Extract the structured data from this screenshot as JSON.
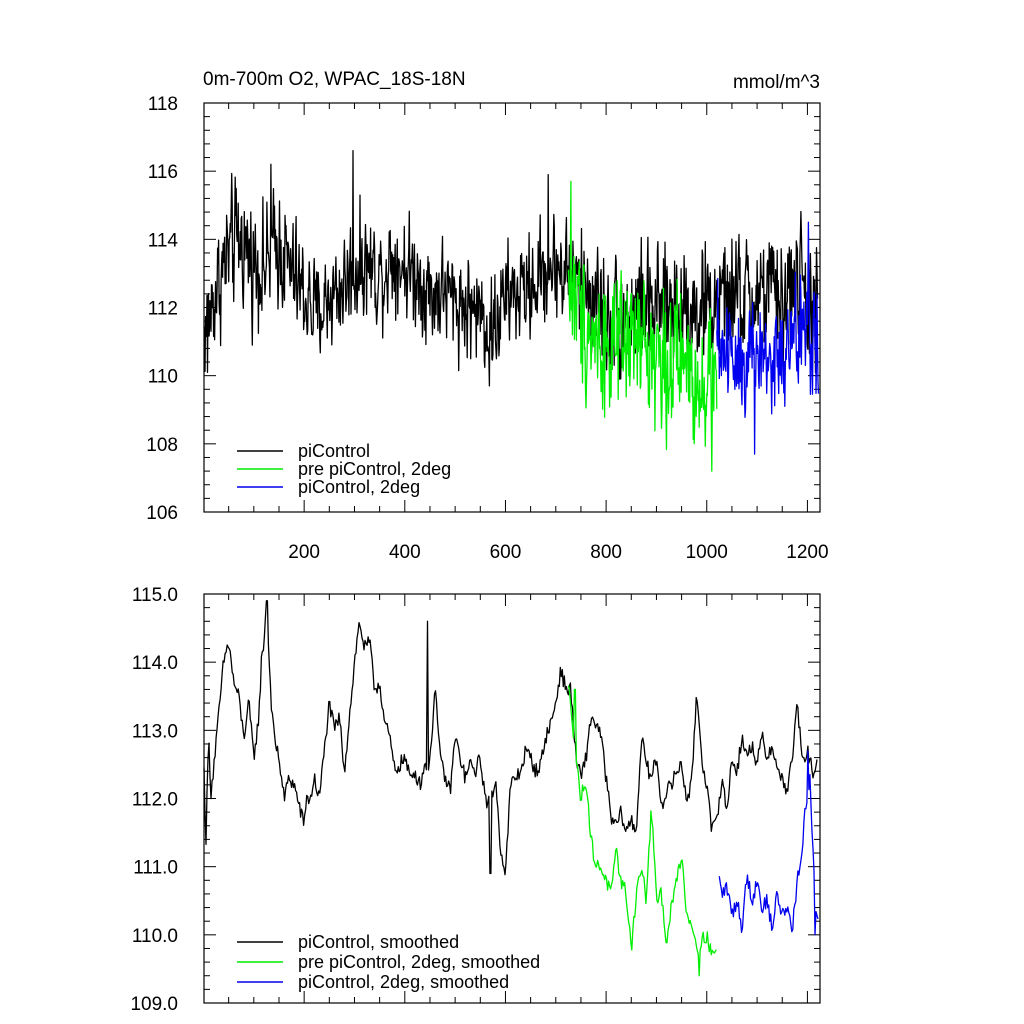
{
  "chart_data": [
    {
      "type": "line",
      "title": "0m-700m O2, WPAC_18S-18N",
      "units": "mmol/m^3",
      "xlim": [
        1,
        1225
      ],
      "ylim": [
        106,
        118
      ],
      "x_ticks": [
        200,
        400,
        600,
        800,
        1000,
        1200
      ],
      "x_tick_labels": [
        "200",
        "400",
        "600",
        "800",
        "1000",
        "1200"
      ],
      "y_ticks": [
        106,
        108,
        110,
        112,
        114,
        116,
        118
      ],
      "y_tick_labels": [
        "106",
        "108",
        "110",
        "112",
        "114",
        "116",
        "118"
      ],
      "legend_position": "bottom-left",
      "series": [
        {
          "name": "piControl",
          "color": "#000000",
          "x": [
            1,
            25,
            50,
            75,
            100,
            125,
            150,
            175,
            200,
            225,
            250,
            275,
            300,
            325,
            350,
            375,
            400,
            425,
            450,
            475,
            500,
            525,
            550,
            575,
            600,
            625,
            650,
            675,
            700,
            725,
            750,
            775,
            800,
            825,
            850,
            875,
            900,
            925,
            950,
            975,
            1000,
            1025,
            1050,
            1075,
            1100,
            1125,
            1150,
            1175,
            1200,
            1220
          ],
          "y": [
            111.2,
            112.5,
            113.6,
            114.0,
            113.3,
            113.2,
            113.9,
            113.0,
            112.4,
            111.8,
            112.3,
            112.6,
            113.1,
            113.3,
            112.9,
            113.5,
            113.2,
            112.9,
            112.4,
            112.5,
            112.2,
            112.0,
            111.9,
            111.3,
            112.3,
            112.4,
            112.6,
            113.0,
            113.2,
            113.0,
            112.6,
            112.4,
            111.8,
            111.6,
            111.9,
            112.1,
            111.9,
            112.0,
            112.3,
            111.9,
            112.1,
            112.0,
            112.4,
            112.2,
            112.3,
            112.5,
            112.1,
            112.8,
            112.4,
            111.8
          ],
          "amplitude": [
            1.0,
            1.1,
            1.2,
            1.2,
            1.1,
            1.1,
            1.2,
            1.1,
            1.1,
            1.0,
            1.0,
            1.0,
            1.1,
            1.0,
            1.0,
            1.0,
            1.0,
            1.0,
            1.0,
            1.0,
            1.0,
            1.0,
            1.0,
            1.1,
            1.0,
            1.0,
            1.0,
            1.0,
            1.0,
            1.1,
            1.1,
            1.1,
            1.2,
            1.2,
            1.2,
            1.2,
            1.1,
            1.2,
            1.2,
            1.2,
            1.2,
            1.2,
            1.2,
            1.2,
            1.2,
            1.2,
            1.2,
            1.3,
            1.3,
            1.3
          ],
          "peaks": [
            [
              297,
              116.6
            ],
            [
              134,
              116.2
            ],
            [
              685,
              115.9
            ]
          ],
          "troughs": [
            [
              8,
              110.1
            ],
            [
              568,
              109.7
            ]
          ]
        },
        {
          "name": "pre piControl, 2deg",
          "color": "#00ee00",
          "x": [
            725,
            750,
            775,
            800,
            825,
            850,
            875,
            900,
            925,
            950,
            975,
            1000,
            1020
          ],
          "y": [
            112.7,
            111.8,
            111.2,
            110.9,
            110.6,
            111.0,
            110.9,
            110.6,
            110.3,
            110.5,
            109.9,
            110.1,
            110.0
          ],
          "amplitude": [
            1.3,
            1.3,
            1.3,
            1.3,
            1.3,
            1.3,
            1.3,
            1.3,
            1.3,
            1.3,
            1.3,
            1.3,
            1.3
          ],
          "peaks": [
            [
              730,
              115.7
            ]
          ],
          "troughs": [
            [
              1010,
              107.2
            ]
          ]
        },
        {
          "name": "piControl, 2deg",
          "color": "#0000ee",
          "x": [
            1020,
            1045,
            1070,
            1095,
            1120,
            1145,
            1170,
            1195,
            1222
          ],
          "y": [
            110.9,
            110.8,
            110.6,
            110.6,
            110.5,
            110.4,
            110.8,
            111.6,
            110.6
          ],
          "amplitude": [
            1.1,
            1.2,
            1.2,
            1.2,
            1.2,
            1.2,
            1.3,
            1.4,
            1.3
          ],
          "peaks": [
            [
              1202,
              114.5
            ]
          ],
          "troughs": [
            [
              1095,
              107.7
            ]
          ]
        }
      ]
    },
    {
      "type": "line",
      "title": "",
      "xlim": [
        1,
        1225
      ],
      "ylim": [
        109,
        115
      ],
      "x_ticks": [
        200,
        400,
        600,
        800,
        1000,
        1200
      ],
      "y_ticks": [
        109,
        110,
        111,
        112,
        113,
        114,
        115
      ],
      "y_tick_labels": [
        "109.0",
        "110.0",
        "111.0",
        "112.0",
        "113.0",
        "114.0",
        "115.0"
      ],
      "legend_position": "bottom-left",
      "series": [
        {
          "name": "piControl, smoothed",
          "color": "#000000",
          "x": [
            1,
            5,
            10,
            15,
            22,
            30,
            40,
            50,
            60,
            70,
            80,
            90,
            100,
            110,
            115,
            120,
            125,
            130,
            135,
            140,
            150,
            160,
            170,
            180,
            190,
            200,
            205,
            210,
            220,
            230,
            240,
            250,
            260,
            270,
            280,
            290,
            300,
            310,
            320,
            330,
            340,
            350,
            360,
            370,
            380,
            390,
            400,
            410,
            420,
            430,
            440,
            450,
            460,
            470,
            480,
            490,
            500,
            510,
            520,
            530,
            540,
            550,
            560,
            570,
            580,
            590,
            600,
            610,
            620,
            630,
            640,
            650,
            660,
            670,
            680,
            690,
            700,
            710,
            720,
            725,
            730,
            740,
            750,
            760,
            770,
            780,
            790,
            800,
            810,
            820,
            830,
            840,
            850,
            860,
            870,
            880,
            890,
            900,
            910,
            920,
            930,
            940,
            950,
            960,
            970,
            980,
            990,
            1000,
            1010,
            1020,
            1030,
            1040,
            1050,
            1060,
            1070,
            1080,
            1090,
            1100,
            1110,
            1120,
            1130,
            1140,
            1150,
            1160,
            1170,
            1180,
            1190,
            1200,
            1210,
            1220
          ],
          "y": [
            112.4,
            111.4,
            112.9,
            112.1,
            112.6,
            113.2,
            114.0,
            114.3,
            113.7,
            113.5,
            112.9,
            113.4,
            112.6,
            113.2,
            114.0,
            114.3,
            114.9,
            114.1,
            113.4,
            112.9,
            112.6,
            112.0,
            112.3,
            112.2,
            111.9,
            111.6,
            112.1,
            111.9,
            112.3,
            112.0,
            112.7,
            113.4,
            113.0,
            113.2,
            112.4,
            113.2,
            114.0,
            114.6,
            114.2,
            114.3,
            113.6,
            113.7,
            113.1,
            112.9,
            112.4,
            112.5,
            112.6,
            112.3,
            112.4,
            112.2,
            112.5,
            112.5,
            113.7,
            112.6,
            112.3,
            112.1,
            112.9,
            112.6,
            112.3,
            112.5,
            112.4,
            112.6,
            112.0,
            111.9,
            112.3,
            111.3,
            110.9,
            112.2,
            112.3,
            112.4,
            112.7,
            112.6,
            112.4,
            112.5,
            112.9,
            113.1,
            113.4,
            113.9,
            113.6,
            113.6,
            113.6,
            112.6,
            112.3,
            112.6,
            113.2,
            113.1,
            112.9,
            112.3,
            111.7,
            111.6,
            111.8,
            111.5,
            111.7,
            111.5,
            112.9,
            112.5,
            112.3,
            112.6,
            111.9,
            112.1,
            112.2,
            112.4,
            112.5,
            112.0,
            112.2,
            113.6,
            112.6,
            112.2,
            111.5,
            111.7,
            112.3,
            111.8,
            112.6,
            112.4,
            112.9,
            112.6,
            112.8,
            112.5,
            112.9,
            112.6,
            112.8,
            112.4,
            112.3,
            112.1,
            112.6,
            113.4,
            112.5,
            112.7,
            112.4,
            112.5
          ],
          "peaks": [
            [
              126,
              114.9
            ],
            [
              445,
              114.6
            ]
          ],
          "troughs": [
            [
              570,
              110.9
            ]
          ]
        },
        {
          "name": "pre piControl, 2deg, smoothed",
          "color": "#00ee00",
          "x": [
            725,
            730,
            740,
            750,
            760,
            770,
            780,
            790,
            800,
            810,
            820,
            830,
            840,
            850,
            860,
            870,
            880,
            890,
            900,
            910,
            920,
            930,
            940,
            950,
            960,
            970,
            980,
            990,
            1000,
            1010,
            1020
          ],
          "y": [
            113.6,
            113.4,
            112.6,
            112.0,
            112.3,
            111.4,
            111.0,
            111.0,
            110.8,
            110.6,
            111.2,
            110.8,
            110.6,
            109.8,
            110.6,
            111.0,
            110.5,
            111.9,
            110.5,
            110.6,
            109.9,
            110.4,
            110.8,
            111.2,
            110.3,
            110.2,
            109.8,
            109.9,
            110.0,
            109.7,
            109.8
          ],
          "peaks": [
            [
              738,
              113.6
            ]
          ],
          "troughs": [
            [
              985,
              109.4
            ]
          ]
        },
        {
          "name": "piControl, 2deg, smoothed",
          "color": "#0000ee",
          "x": [
            1025,
            1030,
            1040,
            1050,
            1060,
            1070,
            1080,
            1090,
            1100,
            1110,
            1120,
            1130,
            1140,
            1150,
            1160,
            1170,
            1180,
            1190,
            1195,
            1200,
            1205,
            1210,
            1215,
            1222
          ],
          "y": [
            110.8,
            110.6,
            110.7,
            110.3,
            110.5,
            110.1,
            110.9,
            110.5,
            110.8,
            110.4,
            110.5,
            110.1,
            110.6,
            110.3,
            110.4,
            110.1,
            110.8,
            111.2,
            111.8,
            111.9,
            112.4,
            111.4,
            110.5,
            110.2
          ],
          "peaks": [
            [
              1201,
              112.7
            ]
          ],
          "troughs": [
            [
              1215,
              110.0
            ]
          ]
        }
      ]
    }
  ]
}
